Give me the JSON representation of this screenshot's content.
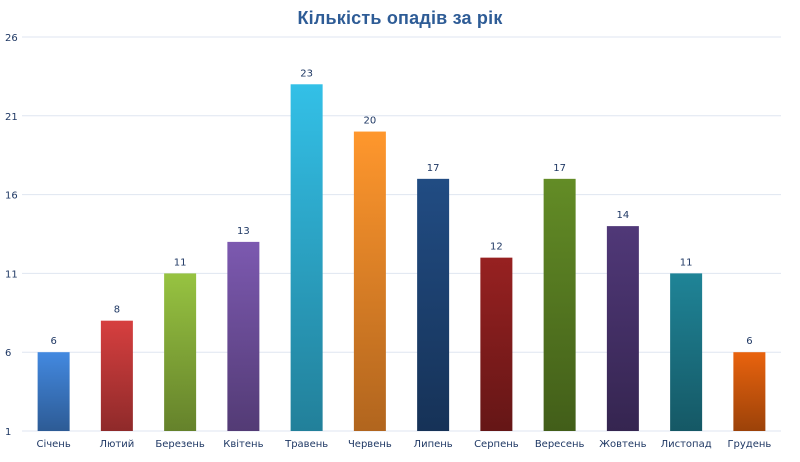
{
  "chart_data": {
    "type": "bar",
    "title": "Кількість опадів  за рік",
    "xlabel": "",
    "ylabel": "",
    "categories": [
      "Січень",
      "Лютий",
      "Березень",
      "Квітень",
      "Травень",
      "Червень",
      "Липень",
      "Серпень",
      "Вересень",
      "Жовтень",
      "Листопад",
      "Грудень"
    ],
    "values": [
      6,
      8,
      11,
      13,
      23,
      20,
      17,
      12,
      17,
      14,
      11,
      6
    ],
    "ylim": [
      1,
      26
    ],
    "yticks": [
      1,
      6,
      11,
      16,
      21,
      26
    ],
    "grid": true,
    "legend": "none",
    "colors": [
      "#3e7fcf",
      "#c63a3a",
      "#8cb53c",
      "#7352a3",
      "#2fb2d6",
      "#f68c2a",
      "#1f4679",
      "#8c1f1f",
      "#5c8223",
      "#4a346f",
      "#1d7a8c",
      "#d85c0d"
    ],
    "title_color": "#2e5c96",
    "label_color": "#1f3864",
    "grid_color": "#dfe6f1"
  }
}
